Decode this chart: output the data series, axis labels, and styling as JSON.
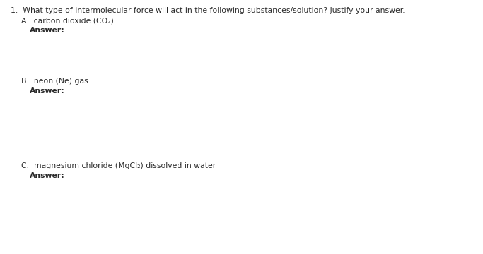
{
  "background_color": "#ffffff",
  "text_color": "#2a2a2a",
  "figsize": [
    6.83,
    3.6
  ],
  "dpi": 100,
  "fontsize": 7.8,
  "lines": [
    {
      "xpx": 15,
      "ypx": 10,
      "text": "1.  What type of intermolecular force will act in the following substances/solution? Justify your answer.",
      "bold": false
    },
    {
      "xpx": 30,
      "ypx": 24,
      "text": "A.  carbon dioxide (CO₂)",
      "bold": false
    },
    {
      "xpx": 42,
      "ypx": 38,
      "text": "Answer:",
      "bold": true
    },
    {
      "xpx": 30,
      "ypx": 110,
      "text": "B.  neon (Ne) gas",
      "bold": false
    },
    {
      "xpx": 42,
      "ypx": 124,
      "text": "Answer:",
      "bold": true
    },
    {
      "xpx": 30,
      "ypx": 230,
      "text": "C.  magnesium chloride (MgCl₂) dissolved in water",
      "bold": false
    },
    {
      "xpx": 42,
      "ypx": 244,
      "text": "Answer:",
      "bold": true
    }
  ]
}
